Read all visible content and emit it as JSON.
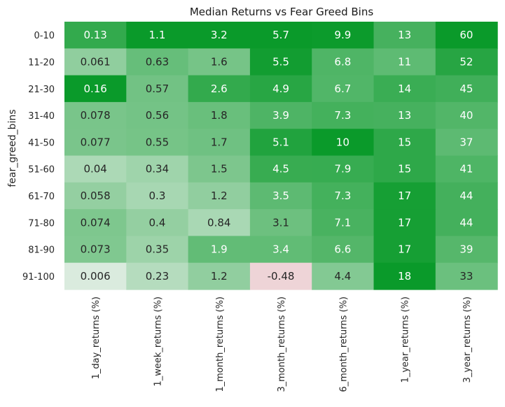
{
  "chart_data": {
    "type": "heatmap",
    "title": "Median Returns vs Fear Greed Bins",
    "xlabel": "",
    "ylabel": "fear_greed_bins",
    "columns": [
      "1_day_returns (%)",
      "1_week_returns (%)",
      "1_month_returns (%)",
      "3_month_returns (%)",
      "6_month_returns (%)",
      "1_year_returns (%)",
      "3_year_returns (%)"
    ],
    "rows": [
      "0-10",
      "11-20",
      "21-30",
      "31-40",
      "41-50",
      "51-60",
      "61-70",
      "71-80",
      "81-90",
      "91-100"
    ],
    "values": [
      [
        0.13,
        1.1,
        3.2,
        5.7,
        9.9,
        13,
        60
      ],
      [
        0.061,
        0.63,
        1.6,
        5.5,
        6.8,
        11,
        52
      ],
      [
        0.16,
        0.57,
        2.6,
        4.9,
        6.7,
        14,
        45
      ],
      [
        0.078,
        0.56,
        1.8,
        3.9,
        7.3,
        13,
        40
      ],
      [
        0.077,
        0.55,
        1.7,
        5.1,
        10,
        15,
        37
      ],
      [
        0.04,
        0.34,
        1.5,
        4.5,
        7.9,
        15,
        41
      ],
      [
        0.058,
        0.3,
        1.2,
        3.5,
        7.3,
        17,
        44
      ],
      [
        0.074,
        0.4,
        0.84,
        3.1,
        7.1,
        17,
        44
      ],
      [
        0.073,
        0.35,
        1.9,
        3.4,
        6.6,
        17,
        39
      ],
      [
        0.006,
        0.23,
        1.2,
        -0.48,
        4.4,
        18,
        33
      ]
    ],
    "labels": [
      [
        "0.13",
        "1.1",
        "3.2",
        "5.7",
        "9.9",
        "13",
        "60"
      ],
      [
        "0.061",
        "0.63",
        "1.6",
        "5.5",
        "6.8",
        "11",
        "52"
      ],
      [
        "0.16",
        "0.57",
        "2.6",
        "4.9",
        "6.7",
        "14",
        "45"
      ],
      [
        "0.078",
        "0.56",
        "1.8",
        "3.9",
        "7.3",
        "13",
        "40"
      ],
      [
        "0.077",
        "0.55",
        "1.7",
        "5.1",
        "10",
        "15",
        "37"
      ],
      [
        "0.04",
        "0.34",
        "1.5",
        "4.5",
        "7.9",
        "15",
        "41"
      ],
      [
        "0.058",
        "0.3",
        "1.2",
        "3.5",
        "7.3",
        "17",
        "44"
      ],
      [
        "0.074",
        "0.4",
        "0.84",
        "3.1",
        "7.1",
        "17",
        "44"
      ],
      [
        "0.073",
        "0.35",
        "1.9",
        "3.4",
        "6.6",
        "17",
        "39"
      ],
      [
        "0.006",
        "0.23",
        "1.2",
        "-0.48",
        "4.4",
        "18",
        "33"
      ]
    ],
    "colormap": {
      "positive_max": "#0a9a2a",
      "center": "#f5f5f5",
      "negative": "#e8b9bf",
      "scaling": "per-column"
    },
    "grid": false,
    "colorbar": false
  }
}
